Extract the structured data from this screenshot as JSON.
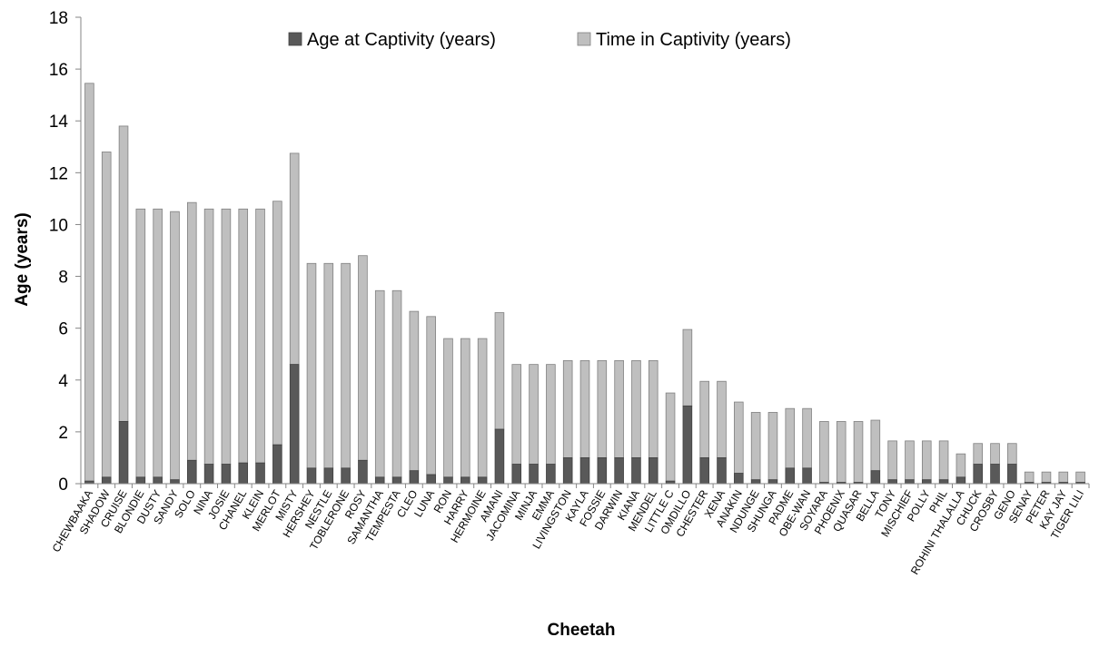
{
  "chart_data": {
    "type": "bar",
    "stacked": true,
    "title": "",
    "xlabel": "Cheetah",
    "ylabel": "Age (years)",
    "ylim": [
      0,
      18
    ],
    "yticks": [
      0,
      2,
      4,
      6,
      8,
      10,
      12,
      14,
      16,
      18
    ],
    "grid": false,
    "legend_position": "top-center",
    "categories": [
      "CHEWBAAKA",
      "SHADOW",
      "CRUISE",
      "BLONDIE",
      "DUSTY",
      "SANDY",
      "SOLO",
      "NINA",
      "JOSIE",
      "CHANEL",
      "KLEIN",
      "MERLOT",
      "MISTY",
      "HERSHEY",
      "NESTLE",
      "TOBLERONE",
      "ROSY",
      "SAMANTHA",
      "TEMPESTA",
      "CLEO",
      "LUNA",
      "RON",
      "HARRY",
      "HERMOINE",
      "AMANI",
      "JACOMINA",
      "MINJA",
      "EMMA",
      "LIVINGSTON",
      "KAYLA",
      "FOSSIE",
      "DARWIN",
      "KIANA",
      "MENDEL",
      "LITTLE C",
      "OMDILLO",
      "CHESTER",
      "XENA",
      "ANAKIN",
      "NDUNGE",
      "SHUNGA",
      "PADME",
      "OBE-WAN",
      "SOYARA",
      "PHOENIX",
      "QUASAR",
      "BELLA",
      "TONY",
      "MISCHIEF",
      "POLLY",
      "PHIL",
      "ROHINI THALALLA",
      "CHUCK",
      "CROSBY",
      "GENO",
      "SENAY",
      "PETER",
      "KAY JAY",
      "TIGER LILI"
    ],
    "series": [
      {
        "name": "Age at Captivity (years)",
        "color": "#595959",
        "values": [
          0.1,
          0.25,
          2.4,
          0.25,
          0.25,
          0.15,
          0.9,
          0.75,
          0.75,
          0.8,
          0.8,
          1.5,
          4.6,
          0.6,
          0.6,
          0.6,
          0.9,
          0.25,
          0.25,
          0.5,
          0.35,
          0.25,
          0.25,
          0.25,
          2.1,
          0.75,
          0.75,
          0.75,
          1.0,
          1.0,
          1.0,
          1.0,
          1.0,
          1.0,
          0.1,
          3.0,
          1.0,
          1.0,
          0.4,
          0.15,
          0.15,
          0.6,
          0.6,
          0.05,
          0.05,
          0.05,
          0.5,
          0.15,
          0.15,
          0.15,
          0.15,
          0.25,
          0.75,
          0.75,
          0.75,
          0.05,
          0.05,
          0.05,
          0.05
        ]
      },
      {
        "name": "Time in Captivity (years)",
        "color": "#bfbfbf",
        "values": [
          15.35,
          12.55,
          11.4,
          10.35,
          10.35,
          10.35,
          9.95,
          9.85,
          9.85,
          9.8,
          9.8,
          9.4,
          8.15,
          7.9,
          7.9,
          7.9,
          7.9,
          7.2,
          7.2,
          6.15,
          6.1,
          5.35,
          5.35,
          5.35,
          4.5,
          3.85,
          3.85,
          3.85,
          3.75,
          3.75,
          3.75,
          3.75,
          3.75,
          3.75,
          3.4,
          2.95,
          2.95,
          2.95,
          2.75,
          2.6,
          2.6,
          2.3,
          2.3,
          2.35,
          2.35,
          2.35,
          1.95,
          1.5,
          1.5,
          1.5,
          1.5,
          0.9,
          0.8,
          0.8,
          0.8,
          0.4,
          0.4,
          0.4,
          0.4
        ]
      }
    ]
  }
}
